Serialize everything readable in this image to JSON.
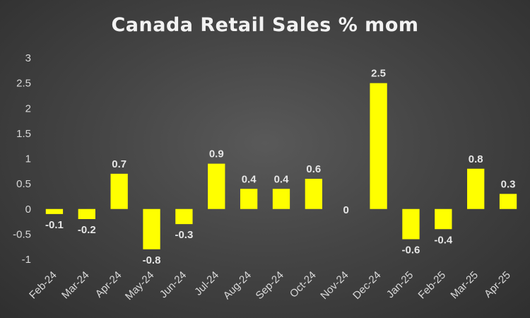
{
  "chart_data": {
    "type": "bar",
    "title": "Canada Retail Sales % mom",
    "xlabel": "",
    "ylabel": "",
    "categories": [
      "Feb-24",
      "Mar-24",
      "Apr-24",
      "May-24",
      "Jun-24",
      "Jul-24",
      "Aug-24",
      "Sep-24",
      "Oct-24",
      "Nov-24",
      "Dec-24",
      "Jan-25",
      "Feb-25",
      "Mar-25",
      "Apr-25"
    ],
    "values": [
      -0.1,
      -0.2,
      0.7,
      -0.8,
      -0.3,
      0.9,
      0.4,
      0.4,
      0.6,
      0,
      2.5,
      -0.6,
      -0.4,
      0.8,
      0.3
    ],
    "ylim": [
      -1,
      3
    ],
    "yticks": [
      3,
      2.5,
      2,
      1.5,
      1,
      0.5,
      0,
      -0.5,
      -1
    ],
    "grid": false,
    "legend": "none",
    "bar_color": "#ffff00",
    "label_color": "#e6e6e6",
    "background_color": "#474747"
  }
}
